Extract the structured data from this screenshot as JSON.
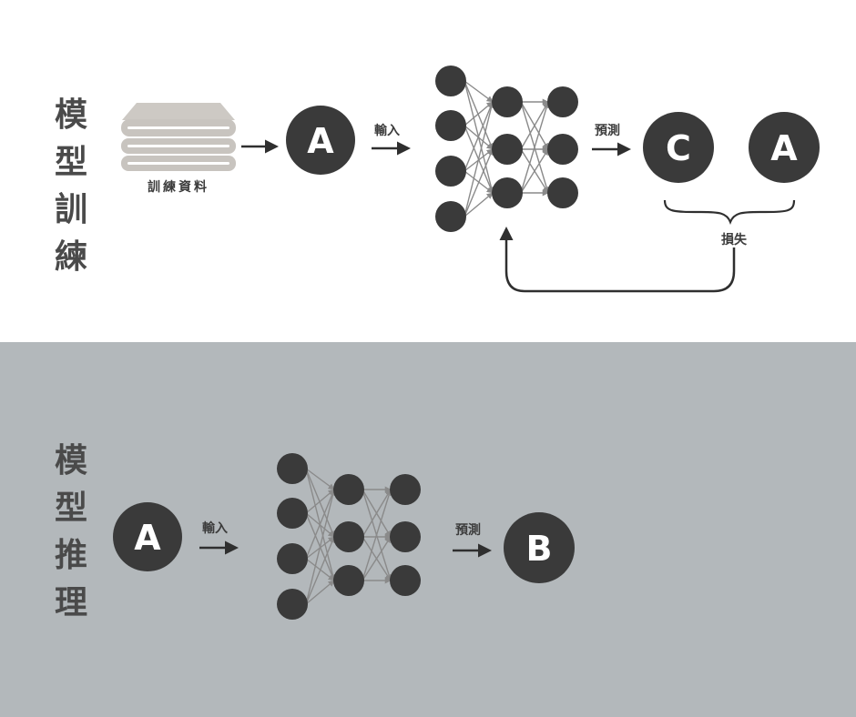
{
  "training": {
    "title_chars": [
      "模",
      "型",
      "訓",
      "練"
    ],
    "data_label": "訓練資料",
    "input_node": "A",
    "input_label": "輸入",
    "predict_label": "預測",
    "prediction_node": "C",
    "target_node": "A",
    "loss_label": "損失"
  },
  "inference": {
    "title_chars": [
      "模",
      "型",
      "推",
      "理"
    ],
    "input_node": "A",
    "input_label": "輸入",
    "predict_label": "預測",
    "output_node": "B"
  },
  "colors": {
    "node_dark": "#3a3a3a",
    "inference_background": "#b3b8bb",
    "stack_gray": "#c8c4bf",
    "edge_gray": "#8a8a8a"
  },
  "icons": {
    "training_data": "folded-stack-icon"
  }
}
